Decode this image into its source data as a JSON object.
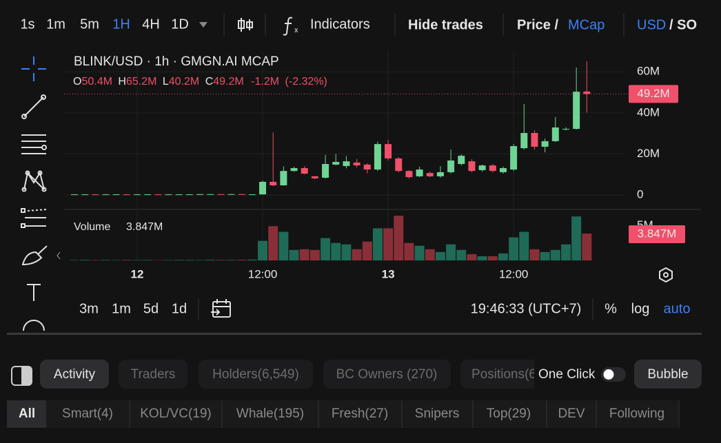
{
  "toolbar": {
    "intervals": [
      "1s",
      "1m",
      "5m",
      "1H",
      "4H",
      "1D"
    ],
    "indicators": "Indicators",
    "hide_trades": "Hide trades",
    "price": "Price /",
    "mcap": "MCap",
    "usd": "USD",
    "sol": "/ SO"
  },
  "legend": {
    "symbol": "BLINK/USD · 1h · GMGN.AI MCAP",
    "ohlc": [
      {
        "key": "O",
        "value": "50.4M"
      },
      {
        "key": "H",
        "value": "65.2M"
      },
      {
        "key": "L",
        "value": "40.2M"
      },
      {
        "key": "C",
        "value": "49.2M"
      }
    ],
    "change": "-1.2M",
    "change_pct": "(-2.32%)",
    "volume_title": "Volume",
    "volume_value": "3.847M"
  },
  "chart_data": {
    "type": "candlestick",
    "categories": [
      null,
      null,
      null,
      null,
      null,
      null,
      "12",
      null,
      null,
      null,
      null,
      null,
      null,
      null,
      null,
      null,
      null,
      null,
      "12:00",
      null,
      null,
      null,
      null,
      null,
      null,
      null,
      null,
      null,
      null,
      null,
      "13",
      null,
      null,
      null,
      null,
      null,
      null,
      null,
      null,
      null,
      null,
      null,
      "12:00",
      null,
      null,
      null,
      null,
      null,
      null,
      null
    ],
    "open": [
      0.2,
      0.3,
      0.3,
      0.2,
      0.3,
      0.3,
      0.2,
      0.3,
      0.3,
      0.2,
      0.3,
      0.3,
      0.3,
      0.4,
      0.4,
      0.3,
      0.4,
      0.3,
      0.3,
      6.4,
      4.7,
      11.7,
      13.1,
      9.1,
      8.4,
      14.8,
      14.1,
      15.8,
      14.8,
      12.4,
      24.8,
      17.8,
      11.7,
      9.1,
      10.7,
      9.1,
      11.1,
      15.1,
      16.4,
      12.1,
      14.4,
      11.1,
      12.4,
      22.8,
      30.2,
      23.5,
      26.2,
      31.9,
      32.2,
      50.4
    ],
    "high": [
      0.4,
      0.4,
      0.4,
      0.4,
      0.4,
      0.4,
      0.4,
      0.4,
      0.4,
      0.4,
      0.4,
      0.4,
      0.5,
      0.5,
      0.5,
      0.5,
      0.5,
      0.4,
      7,
      30.5,
      14,
      13.8,
      14.1,
      9.4,
      19.5,
      20,
      19,
      17.5,
      15.4,
      26,
      26.8,
      18.5,
      12.1,
      13.8,
      11.4,
      14.1,
      22.1,
      19.8,
      17.4,
      14.8,
      15.1,
      13.8,
      24.8,
      44.3,
      31.5,
      27.5,
      38,
      33,
      62.1,
      65.2
    ],
    "low": [
      0.1,
      0.2,
      0.1,
      0.1,
      0.2,
      0.1,
      0.1,
      0.2,
      0.1,
      0.1,
      0.2,
      0.2,
      0.2,
      0.3,
      0.2,
      0.2,
      0.2,
      0.2,
      0.2,
      4.3,
      4.5,
      11.3,
      10,
      7.7,
      8,
      14.4,
      13,
      13.4,
      10.5,
      11.7,
      16.8,
      11,
      8,
      8.7,
      8.7,
      8.4,
      10.4,
      14.4,
      11,
      11.4,
      11,
      10.4,
      11.7,
      22.1,
      22.1,
      20.8,
      25.8,
      31.5,
      31.9,
      40.2
    ],
    "close": [
      0.3,
      0.3,
      0.2,
      0.3,
      0.3,
      0.2,
      0.3,
      0.3,
      0.2,
      0.3,
      0.3,
      0.3,
      0.4,
      0.4,
      0.3,
      0.4,
      0.3,
      0.3,
      6.4,
      4.7,
      11.7,
      13.1,
      10.4,
      8.1,
      15.1,
      16.1,
      16.4,
      14.4,
      12.4,
      24.8,
      17.8,
      11.7,
      8.7,
      12.4,
      9.1,
      11.1,
      16.8,
      19.1,
      11.7,
      14.4,
      11.7,
      13.1,
      23.8,
      30.2,
      23.5,
      26.2,
      32.9,
      32.2,
      50.3,
      49.2
    ],
    "volume": [
      0.05,
      0.08,
      0.06,
      0.07,
      0.05,
      0.08,
      0.06,
      0.07,
      0.05,
      0.06,
      0.08,
      0.07,
      0.06,
      0.09,
      0.08,
      0.07,
      0.1,
      0.12,
      2.8,
      4.9,
      4.1,
      1.5,
      1.6,
      1.5,
      3.2,
      2.5,
      2.3,
      1.6,
      2.7,
      4.6,
      4.6,
      6.4,
      2.5,
      2.1,
      1.6,
      1.2,
      2.3,
      1.5,
      0.9,
      0.6,
      0.6,
      1.0,
      3.3,
      4.1,
      1.6,
      1.2,
      1.5,
      2.3,
      6.3,
      3.847
    ],
    "up_color": "#6fd494",
    "down_color": "#f0506a",
    "up_volume_color": "#1f6b57",
    "down_volume_color": "#8a2f38",
    "ylim": [
      -5.7,
      69.8
    ],
    "yticks": [
      {
        "value": 0,
        "label": "0"
      },
      {
        "value": 20,
        "label": "20M"
      },
      {
        "value": 40,
        "label": "40M"
      },
      {
        "value": 60,
        "label": "60M"
      }
    ],
    "y2lim": [
      0,
      7.2
    ],
    "y2ticks": [
      {
        "value": 5,
        "label": "5M"
      }
    ],
    "price_marker": {
      "value": 49.2,
      "label": "49.2M"
    },
    "volume_marker": {
      "value": 3.847,
      "label": "3.847M"
    },
    "grid": true
  },
  "chart_footer": {
    "ranges": [
      "3m",
      "1m",
      "5d",
      "1d"
    ],
    "clock": "19:46:33 (UTC+7)",
    "percent": "%",
    "log": "log",
    "auto": "auto"
  },
  "tabs": [
    "Activity",
    "Traders",
    "Holders(6,549)",
    "BC Owners (270)",
    "Positions(6"
  ],
  "one_click": "One Click",
  "bubble": "Bubble",
  "filters": [
    "All",
    "Smart(4)",
    "KOL/VC(19)",
    "Whale(195)",
    "Fresh(27)",
    "Snipers",
    "Top(29)",
    "DEV",
    "Following"
  ]
}
